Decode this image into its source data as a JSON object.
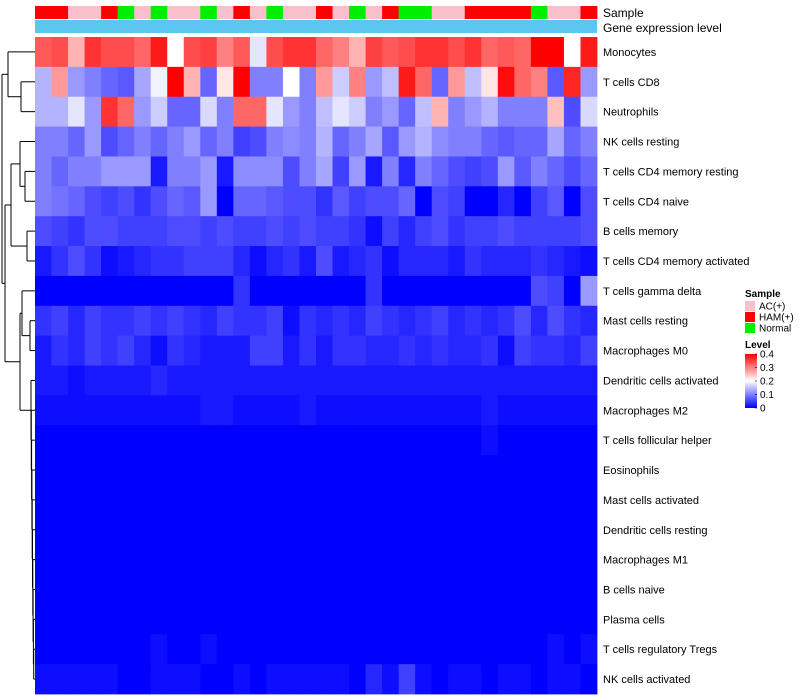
{
  "chart_data": {
    "type": "heatmap",
    "title": "",
    "annotation_rows": {
      "sample_label": "Sample",
      "expression_label": "Gene expression level"
    },
    "sample_groups": [
      "HAM(+)",
      "HAM(+)",
      "AC(+)",
      "AC(+)",
      "HAM(+)",
      "Normal",
      "AC(+)",
      "Normal",
      "AC(+)",
      "AC(+)",
      "Normal",
      "AC(+)",
      "HAM(+)",
      "AC(+)",
      "Normal",
      "AC(+)",
      "AC(+)",
      "HAM(+)",
      "AC(+)",
      "Normal",
      "AC(+)",
      "HAM(+)",
      "Normal",
      "Normal",
      "AC(+)",
      "AC(+)",
      "HAM(+)",
      "HAM(+)",
      "HAM(+)",
      "HAM(+)",
      "Normal",
      "AC(+)",
      "AC(+)",
      "HAM(+)"
    ],
    "rows": [
      {
        "name": "Monocytes",
        "values": [
          0.33,
          0.34,
          0.26,
          0.36,
          0.34,
          0.34,
          0.32,
          0.38,
          0.2,
          0.34,
          0.35,
          0.3,
          0.33,
          0.18,
          0.34,
          0.36,
          0.36,
          0.32,
          0.3,
          0.26,
          0.35,
          0.33,
          0.34,
          0.36,
          0.36,
          0.34,
          0.36,
          0.32,
          0.33,
          0.32,
          0.42,
          0.42,
          0.2,
          0.38
        ]
      },
      {
        "name": "T cells CD8",
        "values": [
          0.14,
          0.28,
          0.12,
          0.1,
          0.08,
          0.07,
          0.13,
          0.19,
          0.4,
          0.26,
          0.08,
          0.22,
          0.41,
          0.1,
          0.1,
          0.2,
          0.1,
          0.28,
          0.16,
          0.3,
          0.12,
          0.15,
          0.38,
          0.32,
          0.08,
          0.28,
          0.15,
          0.22,
          0.39,
          0.32,
          0.3,
          0.07,
          0.37,
          0.12
        ]
      },
      {
        "name": "Neutrophils",
        "values": [
          0.14,
          0.14,
          0.18,
          0.12,
          0.36,
          0.32,
          0.12,
          0.16,
          0.08,
          0.08,
          0.17,
          0.1,
          0.32,
          0.32,
          0.18,
          0.12,
          0.1,
          0.15,
          0.18,
          0.16,
          0.1,
          0.12,
          0.08,
          0.15,
          0.26,
          0.1,
          0.12,
          0.14,
          0.1,
          0.1,
          0.1,
          0.25,
          0.06,
          0.17
        ]
      },
      {
        "name": "NK cells resting",
        "values": [
          0.1,
          0.1,
          0.08,
          0.12,
          0.06,
          0.08,
          0.1,
          0.08,
          0.1,
          0.12,
          0.08,
          0.1,
          0.05,
          0.06,
          0.1,
          0.11,
          0.1,
          0.14,
          0.08,
          0.1,
          0.13,
          0.07,
          0.12,
          0.14,
          0.11,
          0.1,
          0.1,
          0.08,
          0.07,
          0.08,
          0.08,
          0.13,
          0.08,
          0.1
        ]
      },
      {
        "name": "T cells CD4 memory resting",
        "values": [
          0.1,
          0.08,
          0.1,
          0.1,
          0.12,
          0.12,
          0.12,
          0.02,
          0.1,
          0.1,
          0.12,
          0.02,
          0.11,
          0.11,
          0.11,
          0.06,
          0.1,
          0.13,
          0.05,
          0.12,
          0.02,
          0.1,
          0.03,
          0.1,
          0.08,
          0.06,
          0.05,
          0.06,
          0.12,
          0.07,
          0.1,
          0.08,
          0.06,
          0.08
        ]
      },
      {
        "name": "T cells CD4 naive",
        "values": [
          0.1,
          0.09,
          0.08,
          0.06,
          0.05,
          0.06,
          0.04,
          0.06,
          0.08,
          0.07,
          0.12,
          0.0,
          0.08,
          0.08,
          0.07,
          0.06,
          0.06,
          0.04,
          0.07,
          0.05,
          0.06,
          0.06,
          0.08,
          0.0,
          0.06,
          0.05,
          0.0,
          0.0,
          0.03,
          0.0,
          0.05,
          0.07,
          0.0,
          0.06
        ]
      },
      {
        "name": "B cells memory",
        "values": [
          0.06,
          0.05,
          0.04,
          0.06,
          0.06,
          0.05,
          0.05,
          0.05,
          0.06,
          0.06,
          0.05,
          0.06,
          0.05,
          0.05,
          0.06,
          0.05,
          0.06,
          0.05,
          0.05,
          0.04,
          0.01,
          0.05,
          0.03,
          0.05,
          0.06,
          0.04,
          0.05,
          0.05,
          0.06,
          0.05,
          0.05,
          0.05,
          0.05,
          0.06
        ]
      },
      {
        "name": "T cells CD4 memory activated",
        "values": [
          0.02,
          0.04,
          0.06,
          0.04,
          0.01,
          0.02,
          0.03,
          0.04,
          0.04,
          0.05,
          0.05,
          0.05,
          0.03,
          0.01,
          0.03,
          0.04,
          0.02,
          0.06,
          0.02,
          0.03,
          0.04,
          0.01,
          0.03,
          0.03,
          0.03,
          0.02,
          0.04,
          0.03,
          0.03,
          0.03,
          0.04,
          0.03,
          0.02,
          0.01
        ]
      },
      {
        "name": "T cells gamma delta",
        "values": [
          0.0,
          0.0,
          0.0,
          0.0,
          0.0,
          0.0,
          0.0,
          0.0,
          0.0,
          0.0,
          0.0,
          0.0,
          0.04,
          0.0,
          0.0,
          0.0,
          0.0,
          0.0,
          0.0,
          0.0,
          0.04,
          0.0,
          0.0,
          0.0,
          0.0,
          0.0,
          0.0,
          0.0,
          0.0,
          0.0,
          0.06,
          0.05,
          0.0,
          0.12
        ]
      },
      {
        "name": "Mast cells resting",
        "values": [
          0.04,
          0.05,
          0.03,
          0.05,
          0.04,
          0.04,
          0.05,
          0.04,
          0.05,
          0.04,
          0.03,
          0.05,
          0.04,
          0.04,
          0.05,
          0.01,
          0.04,
          0.03,
          0.04,
          0.03,
          0.05,
          0.04,
          0.03,
          0.04,
          0.05,
          0.03,
          0.04,
          0.03,
          0.04,
          0.06,
          0.03,
          0.06,
          0.04,
          0.03
        ]
      },
      {
        "name": "Macrophages M0",
        "values": [
          0.02,
          0.04,
          0.03,
          0.05,
          0.04,
          0.05,
          0.03,
          0.01,
          0.04,
          0.03,
          0.02,
          0.02,
          0.02,
          0.05,
          0.05,
          0.02,
          0.04,
          0.02,
          0.04,
          0.04,
          0.03,
          0.03,
          0.04,
          0.03,
          0.04,
          0.03,
          0.03,
          0.04,
          0.01,
          0.05,
          0.04,
          0.04,
          0.03,
          0.05
        ]
      },
      {
        "name": "Dendritic cells activated",
        "values": [
          0.02,
          0.02,
          0.01,
          0.02,
          0.02,
          0.02,
          0.02,
          0.03,
          0.02,
          0.02,
          0.02,
          0.02,
          0.02,
          0.02,
          0.02,
          0.02,
          0.02,
          0.02,
          0.02,
          0.02,
          0.02,
          0.02,
          0.02,
          0.02,
          0.02,
          0.02,
          0.02,
          0.02,
          0.02,
          0.02,
          0.02,
          0.02,
          0.02,
          0.02
        ]
      },
      {
        "name": "Macrophages M2",
        "values": [
          0.01,
          0.01,
          0.01,
          0.01,
          0.01,
          0.01,
          0.01,
          0.01,
          0.01,
          0.01,
          0.02,
          0.02,
          0.01,
          0.01,
          0.01,
          0.01,
          0.02,
          0.01,
          0.01,
          0.01,
          0.01,
          0.01,
          0.01,
          0.01,
          0.01,
          0.01,
          0.01,
          0.02,
          0.01,
          0.01,
          0.01,
          0.01,
          0.01,
          0.01
        ]
      },
      {
        "name": "T cells follicular helper",
        "values": [
          0.0,
          0.0,
          0.0,
          0.0,
          0.0,
          0.0,
          0.0,
          0.0,
          0.0,
          0.0,
          0.0,
          0.0,
          0.0,
          0.0,
          0.0,
          0.0,
          0.0,
          0.0,
          0.0,
          0.0,
          0.0,
          0.0,
          0.0,
          0.0,
          0.0,
          0.0,
          0.0,
          0.01,
          0.0,
          0.0,
          0.0,
          0.0,
          0.0,
          0.0
        ]
      },
      {
        "name": "Eosinophils",
        "values": [
          0.0,
          0.0,
          0.0,
          0.0,
          0.0,
          0.0,
          0.0,
          0.0,
          0.0,
          0.0,
          0.0,
          0.0,
          0.0,
          0.0,
          0.0,
          0.0,
          0.0,
          0.0,
          0.0,
          0.0,
          0.0,
          0.0,
          0.0,
          0.0,
          0.0,
          0.0,
          0.0,
          0.0,
          0.0,
          0.0,
          0.0,
          0.0,
          0.0,
          0.0
        ]
      },
      {
        "name": "Mast cells activated",
        "values": [
          0.0,
          0.0,
          0.0,
          0.0,
          0.0,
          0.0,
          0.0,
          0.0,
          0.0,
          0.0,
          0.0,
          0.0,
          0.0,
          0.0,
          0.0,
          0.0,
          0.0,
          0.0,
          0.0,
          0.0,
          0.0,
          0.0,
          0.0,
          0.0,
          0.0,
          0.0,
          0.0,
          0.0,
          0.0,
          0.0,
          0.0,
          0.0,
          0.0,
          0.0
        ]
      },
      {
        "name": "Dendritic cells resting",
        "values": [
          0.0,
          0.0,
          0.0,
          0.0,
          0.0,
          0.0,
          0.0,
          0.0,
          0.0,
          0.0,
          0.0,
          0.0,
          0.0,
          0.0,
          0.0,
          0.0,
          0.0,
          0.0,
          0.0,
          0.0,
          0.0,
          0.0,
          0.0,
          0.0,
          0.0,
          0.0,
          0.0,
          0.0,
          0.0,
          0.0,
          0.0,
          0.0,
          0.0,
          0.0
        ]
      },
      {
        "name": "Macrophages M1",
        "values": [
          0.0,
          0.0,
          0.0,
          0.0,
          0.0,
          0.0,
          0.0,
          0.0,
          0.0,
          0.0,
          0.0,
          0.0,
          0.0,
          0.0,
          0.0,
          0.0,
          0.0,
          0.0,
          0.0,
          0.0,
          0.0,
          0.0,
          0.0,
          0.0,
          0.0,
          0.0,
          0.0,
          0.0,
          0.0,
          0.0,
          0.0,
          0.0,
          0.0,
          0.0
        ]
      },
      {
        "name": "B cells naive",
        "values": [
          0.0,
          0.0,
          0.0,
          0.0,
          0.0,
          0.0,
          0.0,
          0.0,
          0.0,
          0.0,
          0.0,
          0.0,
          0.0,
          0.0,
          0.0,
          0.0,
          0.0,
          0.0,
          0.0,
          0.0,
          0.0,
          0.0,
          0.0,
          0.0,
          0.0,
          0.0,
          0.0,
          0.0,
          0.0,
          0.0,
          0.0,
          0.0,
          0.0,
          0.0
        ]
      },
      {
        "name": "Plasma cells",
        "values": [
          0.0,
          0.0,
          0.0,
          0.0,
          0.0,
          0.0,
          0.0,
          0.0,
          0.0,
          0.0,
          0.0,
          0.0,
          0.0,
          0.0,
          0.0,
          0.0,
          0.0,
          0.0,
          0.0,
          0.0,
          0.0,
          0.0,
          0.0,
          0.0,
          0.0,
          0.0,
          0.0,
          0.0,
          0.0,
          0.0,
          0.0,
          0.0,
          0.0,
          0.0
        ]
      },
      {
        "name": "T cells regulatory  Tregs",
        "values": [
          0.0,
          0.0,
          0.0,
          0.0,
          0.0,
          0.0,
          0.0,
          0.01,
          0.0,
          0.0,
          0.01,
          0.0,
          0.0,
          0.0,
          0.0,
          0.0,
          0.0,
          0.0,
          0.0,
          0.0,
          0.0,
          0.0,
          0.0,
          0.0,
          0.0,
          0.0,
          0.0,
          0.0,
          0.0,
          0.0,
          0.0,
          0.01,
          0.0,
          0.01
        ]
      },
      {
        "name": "NK cells activated",
        "values": [
          0.01,
          0.01,
          0.01,
          0.01,
          0.01,
          0.0,
          0.0,
          0.01,
          0.01,
          0.01,
          0.0,
          0.0,
          0.01,
          0.0,
          0.01,
          0.01,
          0.01,
          0.01,
          0.01,
          0.0,
          0.03,
          0.01,
          0.05,
          0.01,
          0.0,
          0.01,
          0.01,
          0.0,
          0.01,
          0.01,
          0.0,
          0.01,
          0.01,
          0.0
        ]
      }
    ],
    "legend": {
      "sample_title": "Sample",
      "sample_entries": [
        {
          "label": "AC(+)",
          "color": "#f9c0cb"
        },
        {
          "label": "HAM(+)",
          "color": "#ff0000"
        },
        {
          "label": "Normal",
          "color": "#00ee00"
        }
      ],
      "level_title": "Level",
      "level_ticks": [
        "0.4",
        "0.3",
        "0.2",
        "0.1",
        "0"
      ],
      "level_range": [
        0,
        0.4
      ]
    },
    "colors": {
      "low": "#0000ff",
      "mid": "#ffffff",
      "high": "#ff0000",
      "expression_bar": "#5bc6f0"
    },
    "dendrogram": "row-clustering"
  }
}
